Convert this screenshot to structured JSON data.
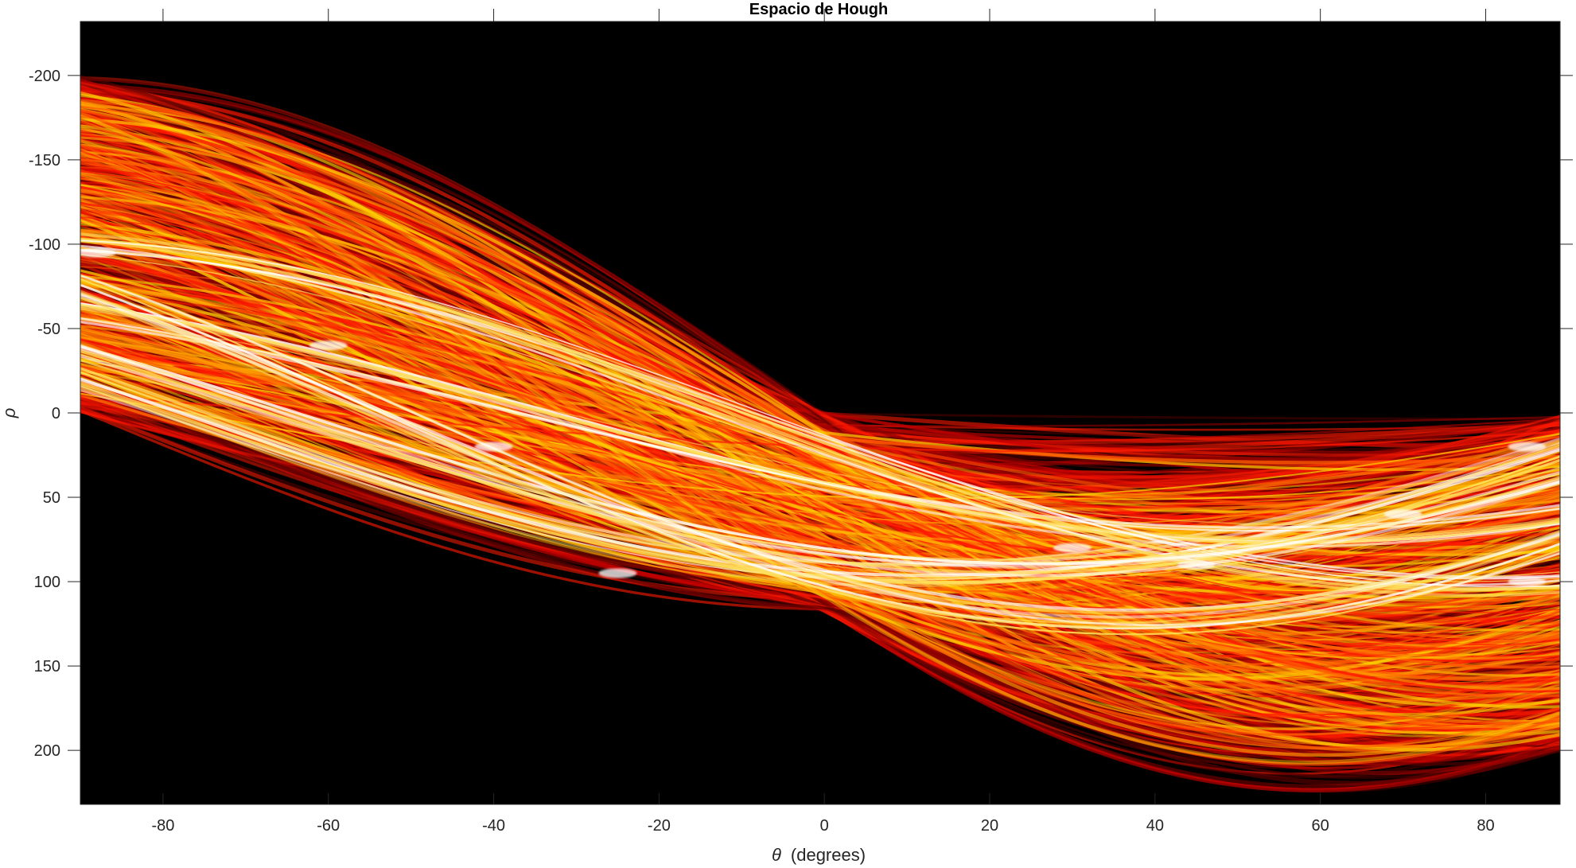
{
  "chart_data": {
    "type": "heatmap",
    "title": "Espacio de Hough",
    "xlabel_symbol": "θ",
    "xlabel_text": "(degrees)",
    "ylabel": "ρ",
    "xlim": [
      -90,
      89
    ],
    "ylim": [
      -232,
      232
    ],
    "y_reversed": true,
    "xticks": [
      -80,
      -60,
      -40,
      -20,
      0,
      20,
      40,
      60,
      80
    ],
    "yticks": [
      -200,
      -150,
      -100,
      -50,
      0,
      50,
      100,
      150,
      200
    ],
    "colormap": "hot",
    "colors": {
      "background": "#000000",
      "low": "#7a0000",
      "mid": "#ff2a00",
      "high": "#ffd000",
      "max": "#ffffff"
    },
    "grid": false,
    "bright_ridges": [
      {
        "theta": -88,
        "rho": -95
      },
      {
        "theta": -60,
        "rho": -40
      },
      {
        "theta": -40,
        "rho": 20
      },
      {
        "theta": -25,
        "rho": 95
      },
      {
        "theta": 30,
        "rho": 80
      },
      {
        "theta": 45,
        "rho": 90
      },
      {
        "theta": 70,
        "rho": 60
      },
      {
        "theta": 85,
        "rho": 20
      },
      {
        "theta": 85,
        "rho": 100
      }
    ]
  }
}
